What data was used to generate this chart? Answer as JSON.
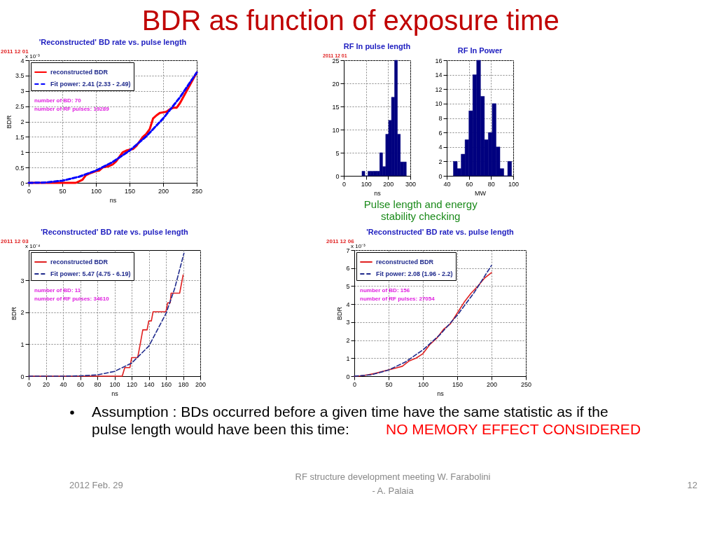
{
  "chart_data": [
    {
      "type": "line",
      "title": "'Reconstructed' BD rate vs. pulse length",
      "xlabel": "ns",
      "ylabel": "BDR",
      "xlim": [
        0,
        250
      ],
      "xticks": [
        0,
        50,
        100,
        150,
        200,
        250
      ],
      "ylim": [
        0,
        4
      ],
      "yticks": [
        0,
        0.5,
        1,
        1.5,
        2,
        2.5,
        3,
        3.5,
        4
      ],
      "grid": true,
      "legend": "top left",
      "series": [
        {
          "name": "reconstructed BDR",
          "color": "#ff0000",
          "line_style": "solid",
          "x": [
            0,
            70,
            75,
            80,
            85,
            90,
            100,
            105,
            110,
            120,
            125,
            130,
            140,
            145,
            150,
            155,
            160,
            165,
            170,
            175,
            180,
            185,
            190,
            195,
            200,
            205,
            210,
            215,
            220,
            225,
            230,
            235,
            240,
            245,
            250
          ],
          "values": [
            0,
            0,
            0.05,
            0.1,
            0.25,
            0.3,
            0.38,
            0.4,
            0.5,
            0.55,
            0.6,
            0.7,
            1.0,
            1.05,
            1.08,
            1.1,
            1.2,
            1.35,
            1.5,
            1.6,
            1.75,
            2.1,
            2.2,
            2.28,
            2.3,
            2.32,
            2.4,
            2.45,
            2.45,
            2.6,
            2.8,
            3.0,
            3.2,
            3.4,
            3.6
          ]
        },
        {
          "name": "Fit power: 2.41 (2.33 - 2.49)",
          "color": "#0000ff",
          "line_style": "dashed",
          "x": [
            0,
            25,
            50,
            75,
            100,
            125,
            150,
            175,
            200,
            225,
            250
          ],
          "values": [
            0,
            0.01,
            0.07,
            0.2,
            0.4,
            0.68,
            1.05,
            1.52,
            2.1,
            2.79,
            3.6
          ]
        }
      ],
      "annotations": [
        "2011 12 01",
        "x 10⁻³",
        "number of BD:  70",
        "number of RF pulses:  19289",
        "BDR as function of exposure time",
        "Assumption : BDs occurred before a given time have the same statistic as if the pulse length would have been this time:",
        "NO MEMORY EFFECT CONSIDERED",
        "2012 Feb. 29",
        "RF structure development meeting  W. Farabolini - A. Palaia",
        "12"
      ]
    },
    {
      "type": "histogram",
      "title": "RF In pulse length",
      "xlabel": "ns",
      "color": "#00007f",
      "bins": [
        82,
        95,
        109,
        122,
        135,
        149,
        162,
        175,
        189,
        202,
        215,
        229,
        242,
        255,
        269,
        282
      ],
      "values": [
        1,
        0,
        1,
        1,
        1,
        1,
        5,
        2,
        9,
        12,
        17,
        25,
        9,
        3,
        3
      ],
      "xlim": [
        0,
        300
      ],
      "xticks": [
        0,
        100,
        200,
        300
      ],
      "ylim": [
        0,
        25
      ],
      "yticks": [
        0,
        5,
        10,
        15,
        20,
        25
      ],
      "grid": true,
      "annotations": [
        "2011 12 01",
        "Pulse length and energy stability checking"
      ]
    },
    {
      "type": "histogram",
      "title": "RF In Power",
      "xlabel": "MW",
      "color": "#00007f",
      "bins": [
        46,
        49.5,
        53,
        56.5,
        60,
        63.5,
        67,
        70.5,
        74,
        77.5,
        81,
        84.5,
        88,
        91.5,
        95,
        98.5
      ],
      "values": [
        2,
        1,
        3,
        5,
        9,
        14,
        16,
        11,
        5,
        6,
        10,
        4,
        1,
        0,
        2
      ],
      "xlim": [
        40,
        100
      ],
      "xticks": [
        40,
        60,
        80,
        100
      ],
      "ylim": [
        0,
        16
      ],
      "yticks": [
        0,
        2,
        4,
        6,
        8,
        10,
        12,
        14,
        16
      ],
      "grid": true
    },
    {
      "type": "line",
      "title": "'Reconstructed' BD rate vs. pulse length",
      "xlabel": "ns",
      "ylabel": "BDR",
      "xlim": [
        0,
        200
      ],
      "xticks": [
        0,
        20,
        40,
        60,
        80,
        100,
        120,
        140,
        160,
        180,
        200
      ],
      "ylim": [
        0,
        3.95
      ],
      "yticks": [
        0,
        1,
        2,
        3
      ],
      "grid": true,
      "legend": "top left",
      "series": [
        {
          "name": "reconstructed BDR",
          "color": "#e02020",
          "line_style": "solid",
          "x": [
            0,
            109,
            112,
            118,
            120,
            127,
            130,
            133,
            138,
            140,
            143,
            145,
            160,
            162,
            165,
            166,
            176,
            180
          ],
          "values": [
            0,
            0,
            0.27,
            0.27,
            0.58,
            0.58,
            1.0,
            1.45,
            1.45,
            1.73,
            1.73,
            2.02,
            2.02,
            2.3,
            2.3,
            2.6,
            2.6,
            3.17
          ]
        },
        {
          "name": "Fit power: 5.47 (4.75 - 6.19)",
          "color": "#1f2a8c",
          "line_style": "dashed",
          "x": [
            0,
            20,
            40,
            60,
            80,
            100,
            120,
            140,
            160,
            170,
            181
          ],
          "values": [
            0,
            0,
            0,
            0.01,
            0.04,
            0.15,
            0.41,
            0.94,
            1.96,
            2.73,
            3.85
          ]
        }
      ],
      "annotations": [
        "2011 12 03",
        "x 10⁻⁴",
        "number of BD:  11",
        "number of RF pulses:  34610"
      ]
    },
    {
      "type": "line",
      "title": "'Reconstructed' BD rate vs. pulse length",
      "xlabel": "ns",
      "ylabel": "BDR",
      "xlim": [
        0,
        250
      ],
      "xticks": [
        0,
        50,
        100,
        150,
        200,
        250
      ],
      "ylim": [
        0,
        7
      ],
      "yticks": [
        0,
        1,
        2,
        3,
        4,
        5,
        6,
        7
      ],
      "grid": true,
      "legend": "top left",
      "series": [
        {
          "name": "reconstructed BDR",
          "color": "#e02020",
          "line_style": "solid",
          "x": [
            0,
            10,
            20,
            30,
            40,
            50,
            60,
            70,
            80,
            90,
            100,
            110,
            120,
            130,
            140,
            150,
            160,
            170,
            180,
            190,
            200
          ],
          "values": [
            0,
            0.02,
            0.08,
            0.15,
            0.25,
            0.35,
            0.45,
            0.55,
            0.85,
            1.0,
            1.25,
            1.75,
            2.1,
            2.6,
            2.9,
            3.5,
            4.1,
            4.6,
            5.0,
            5.45,
            5.75
          ]
        },
        {
          "name": "Fit power: 2.08 (1.96 - 2.2)",
          "color": "#1f2a8c",
          "line_style": "dashed",
          "x": [
            0,
            25,
            50,
            75,
            100,
            125,
            150,
            175,
            200
          ],
          "values": [
            0,
            0.08,
            0.34,
            0.8,
            1.46,
            2.31,
            3.38,
            4.66,
            6.15
          ]
        }
      ],
      "annotations": [
        "2011 12 06",
        "x 10⁻³",
        "number of BD:  156",
        "number of RF pulses:  27054"
      ]
    }
  ]
}
